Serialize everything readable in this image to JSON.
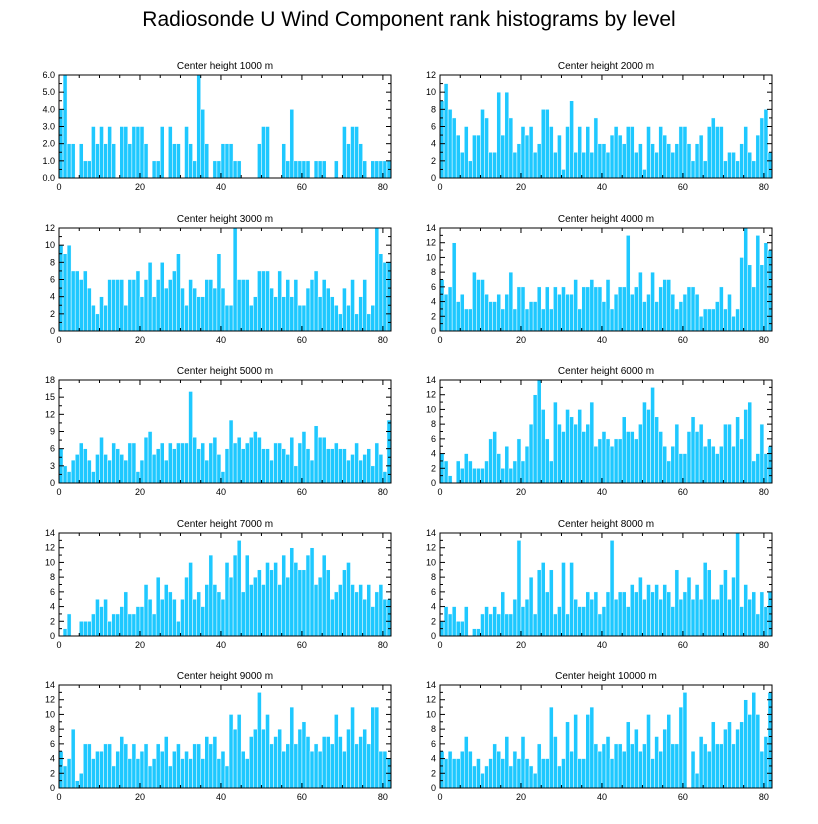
{
  "page": {
    "title": "Radiosonde U Wind Component rank histograms by level"
  },
  "colors": {
    "bar_fill": "#1ec8ff",
    "bar_stroke": "#ffffff",
    "axis": "#000000"
  },
  "chart_data": [
    {
      "type": "bar",
      "title": "Center height 1000 m",
      "xlim": [
        0,
        82
      ],
      "ylim": [
        0,
        6
      ],
      "xticks": [
        0,
        20,
        40,
        60,
        80
      ],
      "yticks": [
        0.0,
        1.0,
        2.0,
        3.0,
        4.0,
        5.0,
        6.0
      ],
      "ytick_labels": [
        "0.0",
        "1.0",
        "2.0",
        "3.0",
        "4.0",
        "5.0",
        "6.0"
      ],
      "values": [
        4,
        6,
        2,
        2,
        0,
        2,
        1,
        1,
        3,
        2,
        3,
        2,
        3,
        2,
        0,
        3,
        3,
        2,
        3,
        3,
        3,
        2,
        0,
        1,
        1,
        3,
        0,
        3,
        2,
        2,
        0,
        3,
        2,
        1,
        6,
        4,
        2,
        0,
        1,
        1,
        2,
        2,
        2,
        1,
        1,
        0,
        0,
        0,
        0,
        2,
        3,
        3,
        0,
        0,
        0,
        2,
        1,
        4,
        1,
        1,
        1,
        1,
        0,
        1,
        1,
        1,
        0,
        0,
        1,
        0,
        3,
        2,
        3,
        3,
        2,
        1,
        0,
        1,
        1,
        1,
        1,
        1
      ]
    },
    {
      "type": "bar",
      "title": "Center height 2000 m",
      "xlim": [
        0,
        82
      ],
      "ylim": [
        0,
        12
      ],
      "xticks": [
        0,
        20,
        40,
        60,
        80
      ],
      "yticks": [
        0,
        2,
        4,
        6,
        8,
        10,
        12
      ],
      "ytick_labels": [
        "0",
        "2",
        "4",
        "6",
        "8",
        "10",
        "12"
      ],
      "values": [
        9,
        11,
        8,
        7,
        5,
        3,
        6,
        2,
        5,
        5,
        8,
        7,
        3,
        3,
        10,
        5,
        10,
        7,
        3,
        4,
        6,
        5,
        6,
        3,
        4,
        8,
        8,
        6,
        3,
        5,
        1,
        6,
        9,
        3,
        6,
        3,
        6,
        3,
        7,
        4,
        4,
        3,
        5,
        6,
        5,
        4,
        6,
        6,
        3,
        4,
        1,
        6,
        4,
        3,
        6,
        5,
        4,
        3,
        4,
        6,
        6,
        4,
        2,
        4,
        5,
        2,
        6,
        7,
        6,
        6,
        2,
        3,
        3,
        2,
        4,
        6,
        3,
        2,
        5,
        7,
        8,
        3
      ]
    },
    {
      "type": "bar",
      "title": "Center height 3000 m",
      "xlim": [
        0,
        82
      ],
      "ylim": [
        0,
        12
      ],
      "xticks": [
        0,
        20,
        40,
        60,
        80
      ],
      "yticks": [
        0,
        2,
        4,
        6,
        8,
        10,
        12
      ],
      "ytick_labels": [
        "0",
        "2",
        "4",
        "6",
        "8",
        "10",
        "12"
      ],
      "values": [
        10,
        9,
        10,
        7,
        7,
        6,
        7,
        5,
        3,
        2,
        4,
        3,
        6,
        6,
        6,
        6,
        3,
        6,
        6,
        7,
        4,
        6,
        8,
        4,
        6,
        8,
        5,
        6,
        7,
        9,
        5,
        3,
        6,
        5,
        4,
        4,
        6,
        6,
        5,
        9,
        5,
        3,
        3,
        12,
        6,
        6,
        6,
        3,
        4,
        7,
        7,
        7,
        5,
        4,
        7,
        4,
        6,
        4,
        6,
        3,
        3,
        5,
        6,
        7,
        4,
        6,
        5,
        4,
        3,
        2,
        5,
        3,
        6,
        2,
        4,
        6,
        2,
        3,
        12,
        9,
        8,
        8
      ]
    },
    {
      "type": "bar",
      "title": "Center height 4000 m",
      "xlim": [
        0,
        82
      ],
      "ylim": [
        0,
        14
      ],
      "xticks": [
        0,
        20,
        40,
        60,
        80
      ],
      "yticks": [
        0,
        2,
        4,
        6,
        8,
        10,
        12,
        14
      ],
      "ytick_labels": [
        "0",
        "2",
        "4",
        "6",
        "8",
        "10",
        "12",
        "14"
      ],
      "values": [
        7,
        5,
        6,
        12,
        4,
        5,
        3,
        3,
        8,
        7,
        7,
        5,
        4,
        4,
        5,
        3,
        5,
        8,
        3,
        6,
        6,
        3,
        4,
        4,
        6,
        3,
        6,
        3,
        6,
        5,
        6,
        5,
        5,
        7,
        3,
        6,
        6,
        7,
        6,
        6,
        4,
        7,
        3,
        5,
        6,
        6,
        13,
        5,
        6,
        8,
        4,
        5,
        8,
        4,
        6,
        7,
        7,
        5,
        3,
        4,
        5,
        6,
        6,
        5,
        2,
        3,
        3,
        3,
        4,
        6,
        3,
        5,
        2,
        3,
        10,
        14,
        9,
        6,
        13,
        9,
        12,
        11
      ]
    },
    {
      "type": "bar",
      "title": "Center height 5000 m",
      "xlim": [
        0,
        82
      ],
      "ylim": [
        0,
        18
      ],
      "xticks": [
        0,
        20,
        40,
        60,
        80
      ],
      "yticks": [
        0,
        3,
        6,
        9,
        12,
        15,
        18
      ],
      "ytick_labels": [
        "0",
        "3",
        "6",
        "9",
        "12",
        "15",
        "18"
      ],
      "values": [
        6,
        3,
        2,
        4,
        5,
        7,
        6,
        4,
        2,
        5,
        8,
        5,
        4,
        7,
        6,
        5,
        4,
        7,
        7,
        2,
        4,
        8,
        9,
        5,
        6,
        7,
        4,
        7,
        6,
        7,
        7,
        7,
        16,
        8,
        6,
        7,
        4,
        7,
        8,
        5,
        2,
        6,
        11,
        7,
        8,
        6,
        7,
        8,
        9,
        8,
        6,
        6,
        4,
        7,
        7,
        6,
        5,
        8,
        3,
        7,
        9,
        6,
        4,
        10,
        8,
        8,
        6,
        6,
        7,
        6,
        6,
        4,
        5,
        7,
        4,
        5,
        6,
        3,
        7,
        5,
        2,
        11
      ]
    },
    {
      "type": "bar",
      "title": "Center height 6000 m",
      "xlim": [
        0,
        82
      ],
      "ylim": [
        0,
        14
      ],
      "xticks": [
        0,
        20,
        40,
        60,
        80
      ],
      "yticks": [
        0,
        2,
        4,
        6,
        8,
        10,
        12,
        14
      ],
      "ytick_labels": [
        "0",
        "2",
        "4",
        "6",
        "8",
        "10",
        "12",
        "14"
      ],
      "values": [
        4,
        3,
        1,
        0,
        3,
        2,
        4,
        3,
        2,
        2,
        2,
        3,
        6,
        7,
        4,
        2,
        5,
        2,
        3,
        6,
        3,
        5,
        8,
        12,
        14,
        10,
        6,
        3,
        11,
        8,
        7,
        10,
        9,
        8,
        10,
        7,
        8,
        11,
        5,
        6,
        7,
        6,
        5,
        6,
        6,
        9,
        7,
        7,
        6,
        8,
        11,
        10,
        13,
        9,
        7,
        5,
        3,
        5,
        8,
        4,
        4,
        7,
        9,
        7,
        8,
        5,
        6,
        5,
        4,
        5,
        8,
        8,
        5,
        9,
        6,
        10,
        11,
        3,
        4,
        8,
        4,
        5
      ]
    },
    {
      "type": "bar",
      "title": "Center height 7000 m",
      "xlim": [
        0,
        82
      ],
      "ylim": [
        0,
        14
      ],
      "xticks": [
        0,
        20,
        40,
        60,
        80
      ],
      "yticks": [
        0,
        2,
        4,
        6,
        8,
        10,
        12,
        14
      ],
      "ytick_labels": [
        "0",
        "2",
        "4",
        "6",
        "8",
        "10",
        "12",
        "14"
      ],
      "values": [
        0,
        1,
        3,
        0,
        0,
        2,
        2,
        2,
        3,
        5,
        4,
        5,
        2,
        3,
        3,
        4,
        6,
        3,
        3,
        4,
        4,
        7,
        5,
        3,
        8,
        5,
        7,
        6,
        5,
        2,
        5,
        8,
        10,
        5,
        6,
        4,
        7,
        11,
        7,
        6,
        5,
        10,
        8,
        11,
        13,
        6,
        11,
        7,
        8,
        9,
        7,
        10,
        9,
        10,
        7,
        11,
        8,
        12,
        10,
        9,
        9,
        11,
        12,
        7,
        8,
        11,
        9,
        5,
        6,
        7,
        9,
        10,
        7,
        6,
        7,
        5,
        7,
        4,
        6,
        7,
        5,
        5
      ]
    },
    {
      "type": "bar",
      "title": "Center height 8000 m",
      "xlim": [
        0,
        82
      ],
      "ylim": [
        0,
        14
      ],
      "xticks": [
        0,
        20,
        40,
        60,
        80
      ],
      "yticks": [
        0,
        2,
        4,
        6,
        8,
        10,
        12,
        14
      ],
      "ytick_labels": [
        "0",
        "2",
        "4",
        "6",
        "8",
        "10",
        "12",
        "14"
      ],
      "values": [
        2,
        4,
        3,
        4,
        2,
        2,
        4,
        0,
        1,
        1,
        3,
        4,
        3,
        4,
        3,
        6,
        3,
        3,
        5,
        13,
        4,
        5,
        8,
        3,
        9,
        10,
        6,
        9,
        3,
        4,
        10,
        3,
        10,
        5,
        4,
        4,
        6,
        5,
        6,
        3,
        4,
        6,
        13,
        5,
        6,
        6,
        4,
        7,
        6,
        8,
        5,
        7,
        6,
        7,
        5,
        7,
        6,
        4,
        9,
        5,
        6,
        8,
        5,
        7,
        5,
        10,
        9,
        5,
        5,
        7,
        9,
        5,
        8,
        14,
        4,
        7,
        5,
        6,
        3,
        6,
        4,
        6
      ]
    },
    {
      "type": "bar",
      "title": "Center height 9000 m",
      "xlim": [
        0,
        82
      ],
      "ylim": [
        0,
        14
      ],
      "xticks": [
        0,
        20,
        40,
        60,
        80
      ],
      "yticks": [
        0,
        2,
        4,
        6,
        8,
        10,
        12,
        14
      ],
      "ytick_labels": [
        "0",
        "2",
        "4",
        "6",
        "8",
        "10",
        "12",
        "14"
      ],
      "values": [
        5,
        3,
        4,
        8,
        1,
        2,
        6,
        6,
        4,
        5,
        5,
        6,
        6,
        3,
        5,
        7,
        6,
        4,
        6,
        4,
        5,
        6,
        3,
        4,
        6,
        5,
        7,
        3,
        5,
        6,
        4,
        5,
        4,
        6,
        6,
        4,
        7,
        6,
        7,
        4,
        5,
        3,
        10,
        8,
        10,
        5,
        4,
        7,
        8,
        13,
        8,
        10,
        6,
        7,
        8,
        5,
        6,
        11,
        6,
        8,
        9,
        7,
        5,
        6,
        5,
        7,
        7,
        6,
        10,
        7,
        5,
        8,
        11,
        6,
        7,
        8,
        6,
        11,
        11,
        5,
        5,
        4
      ]
    },
    {
      "type": "bar",
      "title": "Center height 10000 m",
      "xlim": [
        0,
        82
      ],
      "ylim": [
        0,
        14
      ],
      "xticks": [
        0,
        20,
        40,
        60,
        80
      ],
      "yticks": [
        0,
        2,
        4,
        6,
        8,
        10,
        12,
        14
      ],
      "ytick_labels": [
        "0",
        "2",
        "4",
        "6",
        "8",
        "10",
        "12",
        "14"
      ],
      "values": [
        5,
        4,
        5,
        4,
        4,
        5,
        7,
        5,
        3,
        4,
        2,
        3,
        4,
        6,
        5,
        4,
        7,
        3,
        5,
        4,
        7,
        4,
        3,
        2,
        6,
        4,
        4,
        11,
        7,
        3,
        4,
        9,
        5,
        10,
        4,
        4,
        10,
        11,
        6,
        5,
        6,
        7,
        4,
        6,
        6,
        5,
        9,
        6,
        8,
        5,
        6,
        10,
        4,
        7,
        5,
        8,
        10,
        6,
        6,
        11,
        13,
        0,
        5,
        2,
        7,
        6,
        5,
        9,
        6,
        6,
        8,
        9,
        6,
        8,
        9,
        12,
        10,
        13,
        10,
        5,
        7,
        13
      ]
    }
  ]
}
